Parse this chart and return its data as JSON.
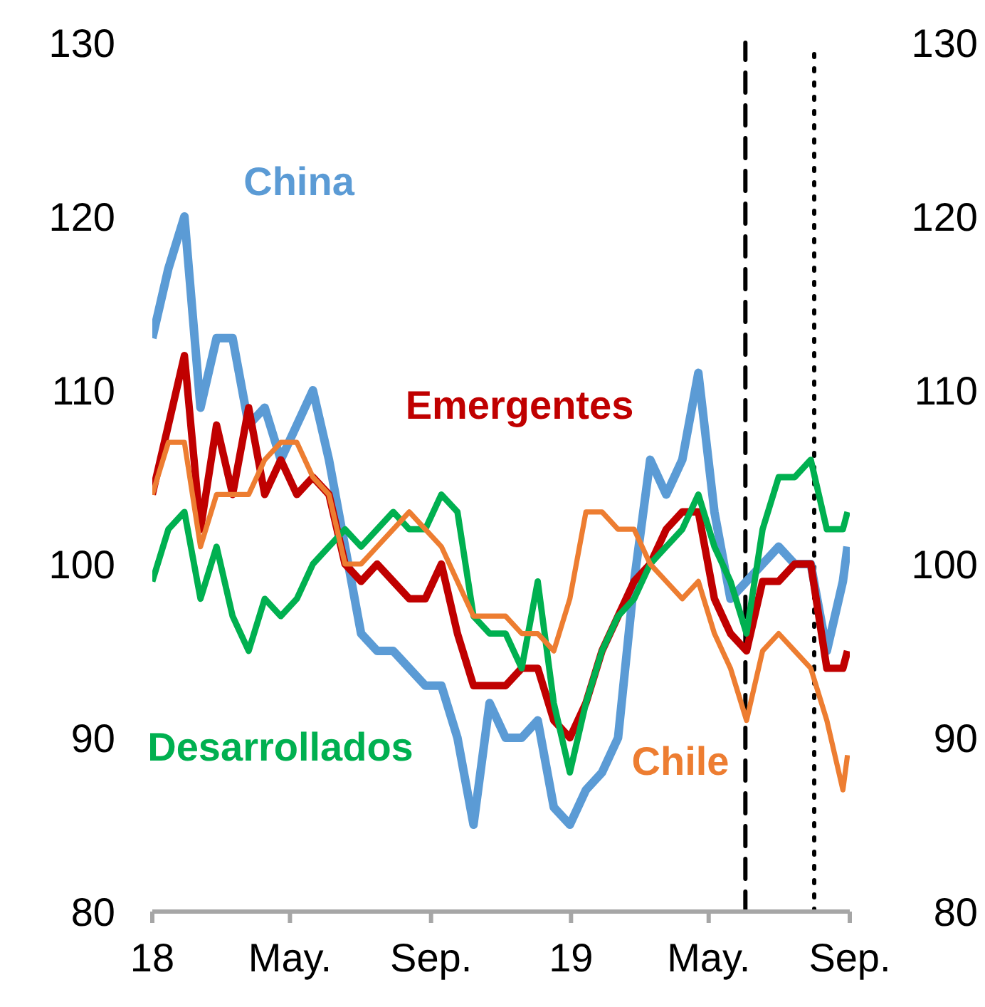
{
  "chart_data": {
    "type": "line",
    "x": [
      "2018-01-01",
      "2018-01-15",
      "2018-01-29",
      "2018-02-12",
      "2018-02-26",
      "2018-03-12",
      "2018-03-26",
      "2018-04-09",
      "2018-04-23",
      "2018-05-07",
      "2018-05-21",
      "2018-06-04",
      "2018-06-18",
      "2018-07-02",
      "2018-07-16",
      "2018-07-30",
      "2018-08-13",
      "2018-08-27",
      "2018-09-10",
      "2018-09-24",
      "2018-10-08",
      "2018-10-22",
      "2018-11-05",
      "2018-11-19",
      "2018-12-03",
      "2018-12-17",
      "2018-12-31",
      "2019-01-14",
      "2019-01-28",
      "2019-02-11",
      "2019-02-25",
      "2019-03-11",
      "2019-03-25",
      "2019-04-08",
      "2019-04-22",
      "2019-05-06",
      "2019-05-20",
      "2019-06-03",
      "2019-06-17",
      "2019-07-01",
      "2019-07-15",
      "2019-07-29",
      "2019-08-12",
      "2019-08-26",
      "2019-08-30"
    ],
    "series": [
      {
        "name": "China",
        "color": "#5b9bd5",
        "values": [
          113,
          117,
          120,
          109,
          113,
          113,
          108,
          109,
          106,
          108,
          110,
          106,
          101,
          96,
          95,
          95,
          94,
          93,
          93,
          90,
          85,
          92,
          90,
          90,
          91,
          86,
          85,
          87,
          88,
          90,
          99,
          106,
          104,
          106,
          111,
          103,
          98,
          99,
          100,
          101,
          100,
          100,
          95,
          99,
          101
        ]
      },
      {
        "name": "Emergentes",
        "color": "#c00000",
        "values": [
          104,
          108,
          112,
          102,
          108,
          104,
          109,
          104,
          106,
          104,
          105,
          104,
          100,
          99,
          100,
          99,
          98,
          98,
          100,
          96,
          93,
          93,
          93,
          94,
          94,
          91,
          90,
          92,
          95,
          97,
          99,
          100,
          102,
          103,
          103,
          98,
          96,
          95,
          99,
          99,
          100,
          100,
          94,
          94,
          95
        ]
      },
      {
        "name": "Desarrollados",
        "color": "#00b050",
        "values": [
          99,
          102,
          103,
          98,
          101,
          97,
          95,
          98,
          97,
          98,
          100,
          101,
          102,
          101,
          102,
          103,
          102,
          102,
          104,
          103,
          97,
          96,
          96,
          94,
          99,
          92,
          88,
          92,
          95,
          97,
          98,
          100,
          101,
          102,
          104,
          101,
          99,
          96,
          102,
          105,
          105,
          106,
          102,
          102,
          103
        ]
      },
      {
        "name": "Chile",
        "color": "#ed7d31",
        "values": [
          104,
          107,
          107,
          101,
          104,
          104,
          104,
          106,
          107,
          107,
          105,
          104,
          100,
          100,
          101,
          102,
          103,
          102,
          101,
          99,
          97,
          97,
          97,
          96,
          96,
          95,
          98,
          103,
          103,
          102,
          102,
          100,
          99,
          98,
          99,
          96,
          94,
          91,
          95,
          96,
          95,
          94,
          91,
          87,
          89
        ]
      }
    ],
    "xlim": [
      "2018-01-01",
      "2019-09-01"
    ],
    "xticks": [
      {
        "value": "2018-01-01",
        "label": "18"
      },
      {
        "value": "2018-05-01",
        "label": "May."
      },
      {
        "value": "2018-09-01",
        "label": "Sep."
      },
      {
        "value": "2019-01-01",
        "label": "19"
      },
      {
        "value": "2019-05-01",
        "label": "May."
      },
      {
        "value": "2019-09-01",
        "label": "Sep."
      }
    ],
    "ylim": [
      80,
      130
    ],
    "yticks": [
      80,
      90,
      100,
      110,
      120,
      130
    ],
    "y2lim": [
      80,
      130
    ],
    "y2ticks": [
      80,
      90,
      100,
      110,
      120,
      130
    ],
    "ref_lines": [
      {
        "axis": "x",
        "value": "2019-06-02",
        "color": "#000000",
        "line_style": "dashed"
      },
      {
        "axis": "x",
        "value": "2019-08-01",
        "color": "#000000",
        "line_style": "dotted"
      }
    ],
    "grid": false,
    "legend": false,
    "marker": "none",
    "line_style": "solid"
  }
}
